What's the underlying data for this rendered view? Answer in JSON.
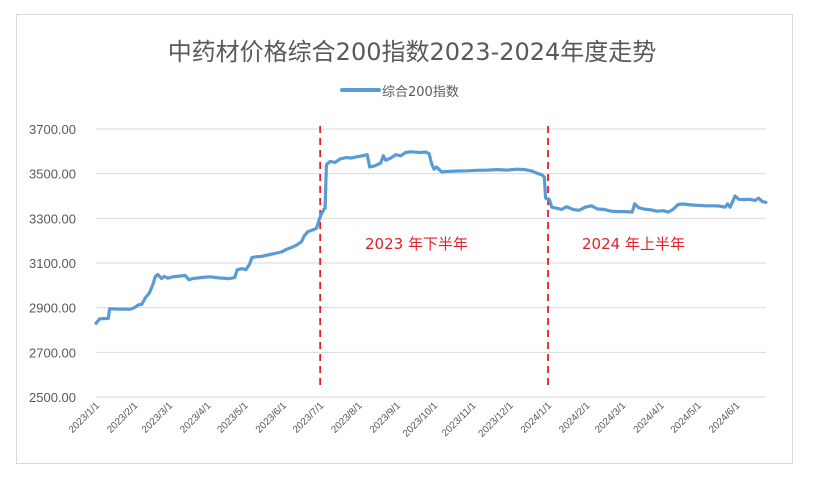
{
  "chart_data": {
    "type": "line",
    "title": "中药材价格综合200指数2023-2024年度走势",
    "xlabel": "",
    "ylabel": "",
    "ylim": [
      2500,
      3700
    ],
    "yticks": [
      "3700.00",
      "3500.00",
      "3300.00",
      "3100.00",
      "2900.00",
      "2700.00",
      "2500.00"
    ],
    "ytick_values": [
      3700,
      3500,
      3300,
      3100,
      2900,
      2700,
      2500
    ],
    "xticks": [
      "2023/1/1",
      "2023/2/1",
      "2023/3/1",
      "2023/4/1",
      "2023/5/1",
      "2023/6/1",
      "2023/7/1",
      "2023/8/1",
      "2023/9/1",
      "2023/10/1",
      "2023/11/1",
      "2023/12/1",
      "2024/1/1",
      "2024/2/1",
      "2024/3/1",
      "2024/4/1",
      "2024/5/1",
      "2024/6/1"
    ],
    "xtick_days": [
      0,
      31,
      59,
      90,
      120,
      151,
      181,
      212,
      243,
      273,
      304,
      334,
      365,
      396,
      425,
      456,
      486,
      517
    ],
    "x_range_days": [
      0,
      541
    ],
    "grid": true,
    "legend_position": "top",
    "series": [
      {
        "name": "综合200指数",
        "color": "#5b9bd5",
        "x_unit": "days since 2023/1/1",
        "points": [
          [
            0,
            2830
          ],
          [
            3,
            2850
          ],
          [
            10,
            2852
          ],
          [
            11,
            2895
          ],
          [
            20,
            2893
          ],
          [
            28,
            2893
          ],
          [
            31,
            2900
          ],
          [
            34,
            2912
          ],
          [
            37,
            2915
          ],
          [
            40,
            2945
          ],
          [
            43,
            2965
          ],
          [
            46,
            3005
          ],
          [
            48,
            3040
          ],
          [
            50,
            3048
          ],
          [
            53,
            3030
          ],
          [
            55,
            3040
          ],
          [
            58,
            3032
          ],
          [
            62,
            3038
          ],
          [
            68,
            3042
          ],
          [
            72,
            3044
          ],
          [
            75,
            3025
          ],
          [
            78,
            3030
          ],
          [
            85,
            3035
          ],
          [
            92,
            3038
          ],
          [
            100,
            3033
          ],
          [
            108,
            3030
          ],
          [
            112,
            3035
          ],
          [
            114,
            3070
          ],
          [
            118,
            3075
          ],
          [
            121,
            3070
          ],
          [
            124,
            3095
          ],
          [
            126,
            3125
          ],
          [
            130,
            3128
          ],
          [
            134,
            3130
          ],
          [
            138,
            3135
          ],
          [
            142,
            3140
          ],
          [
            146,
            3145
          ],
          [
            150,
            3150
          ],
          [
            154,
            3162
          ],
          [
            158,
            3170
          ],
          [
            162,
            3180
          ],
          [
            166,
            3196
          ],
          [
            168,
            3220
          ],
          [
            171,
            3240
          ],
          [
            175,
            3248
          ],
          [
            178,
            3255
          ],
          [
            180,
            3290
          ],
          [
            182,
            3320
          ],
          [
            184,
            3340
          ],
          [
            185,
            3345
          ],
          [
            186,
            3540
          ],
          [
            189,
            3555
          ],
          [
            193,
            3550
          ],
          [
            197,
            3566
          ],
          [
            202,
            3572
          ],
          [
            206,
            3570
          ],
          [
            210,
            3575
          ],
          [
            215,
            3580
          ],
          [
            219,
            3585
          ],
          [
            221,
            3530
          ],
          [
            225,
            3535
          ],
          [
            230,
            3548
          ],
          [
            232,
            3580
          ],
          [
            234,
            3560
          ],
          [
            238,
            3570
          ],
          [
            242,
            3585
          ],
          [
            246,
            3580
          ],
          [
            250,
            3595
          ],
          [
            254,
            3598
          ],
          [
            258,
            3596
          ],
          [
            262,
            3595
          ],
          [
            266,
            3597
          ],
          [
            269,
            3590
          ],
          [
            271,
            3545
          ],
          [
            273,
            3520
          ],
          [
            275,
            3530
          ],
          [
            279,
            3508
          ],
          [
            285,
            3510
          ],
          [
            292,
            3512
          ],
          [
            300,
            3513
          ],
          [
            308,
            3515
          ],
          [
            316,
            3516
          ],
          [
            324,
            3518
          ],
          [
            332,
            3516
          ],
          [
            340,
            3520
          ],
          [
            346,
            3518
          ],
          [
            352,
            3512
          ],
          [
            356,
            3502
          ],
          [
            360,
            3495
          ],
          [
            362,
            3485
          ],
          [
            363,
            3390
          ],
          [
            366,
            3385
          ],
          [
            368,
            3350
          ],
          [
            372,
            3345
          ],
          [
            376,
            3340
          ],
          [
            380,
            3352
          ],
          [
            385,
            3340
          ],
          [
            390,
            3336
          ],
          [
            395,
            3350
          ],
          [
            400,
            3356
          ],
          [
            405,
            3342
          ],
          [
            410,
            3340
          ],
          [
            416,
            3332
          ],
          [
            422,
            3330
          ],
          [
            428,
            3330
          ],
          [
            433,
            3328
          ],
          [
            435,
            3365
          ],
          [
            438,
            3348
          ],
          [
            442,
            3342
          ],
          [
            448,
            3338
          ],
          [
            453,
            3332
          ],
          [
            458,
            3334
          ],
          [
            462,
            3328
          ],
          [
            466,
            3340
          ],
          [
            470,
            3362
          ],
          [
            474,
            3364
          ],
          [
            480,
            3360
          ],
          [
            486,
            3358
          ],
          [
            492,
            3356
          ],
          [
            498,
            3356
          ],
          [
            503,
            3355
          ],
          [
            508,
            3350
          ],
          [
            510,
            3365
          ],
          [
            512,
            3350
          ],
          [
            514,
            3375
          ],
          [
            516,
            3400
          ],
          [
            519,
            3385
          ],
          [
            523,
            3384
          ],
          [
            528,
            3385
          ],
          [
            532,
            3380
          ],
          [
            535,
            3390
          ],
          [
            538,
            3375
          ],
          [
            541,
            3372
          ]
        ]
      }
    ],
    "annotations": [
      {
        "type": "vline",
        "day": 181,
        "color": "#e0202a",
        "style": "dashed",
        "label": "2023/7/1"
      },
      {
        "type": "vline",
        "day": 365,
        "color": "#e0202a",
        "style": "dashed",
        "label": "2024/1/1"
      },
      {
        "type": "text",
        "text": "2023 年下半年",
        "color": "#e0202a"
      },
      {
        "type": "text",
        "text": "2024 年上半年",
        "color": "#e0202a"
      }
    ]
  },
  "title": "中药材价格综合200指数2023-2024年度走势",
  "legend": {
    "label": "综合200指数",
    "color": "#5b9bd5"
  },
  "annotations": {
    "h2_2023": "2023 年下半年",
    "h1_2024": "2024 年上半年"
  }
}
